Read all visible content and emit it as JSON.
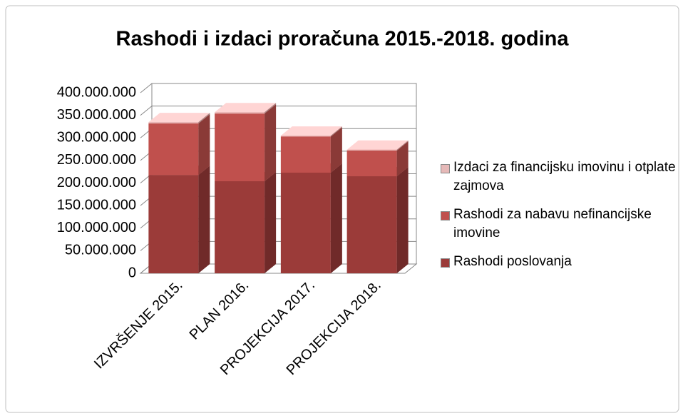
{
  "chart_data": {
    "type": "bar3d_stacked",
    "title": "Rashodi i izdaci proračuna 2015.-2018. godina",
    "categories": [
      "IZVRŠENJE 2015.",
      "PLAN 2016.",
      "PROJEKCIJA 2017.",
      "PROJEKCIJA 2018."
    ],
    "series": [
      {
        "name": "Rashodi poslovanja",
        "color": "#9b3b39",
        "values": [
          218000000,
          204000000,
          223000000,
          215000000
        ]
      },
      {
        "name": "Rashodi za nabavu nefinancijske imovine",
        "color": "#c0504d",
        "values": [
          114000000,
          150000000,
          80000000,
          57000000
        ]
      },
      {
        "name": "Izdaci za financijsku imovinu i otplate zajmova",
        "color": "#e6b9b8",
        "values": [
          3000000,
          3000000,
          2000000,
          2000000
        ]
      }
    ],
    "ylim": [
      0,
      400000000
    ],
    "yticks": [
      0,
      {
        "value": 50000000,
        "label": "50.000.000"
      },
      {
        "value": 100000000,
        "label": "100.000.000"
      },
      {
        "value": 150000000,
        "label": "150.000.000"
      },
      {
        "value": 200000000,
        "label": "200.000.000"
      },
      {
        "value": 250000000,
        "label": "250.000.000"
      },
      {
        "value": 300000000,
        "label": "300.000.000"
      },
      {
        "value": 350000000,
        "label": "350.000.000"
      },
      {
        "value": 400000000,
        "label": "400.000.000"
      }
    ],
    "grid": true,
    "legend": "right"
  }
}
